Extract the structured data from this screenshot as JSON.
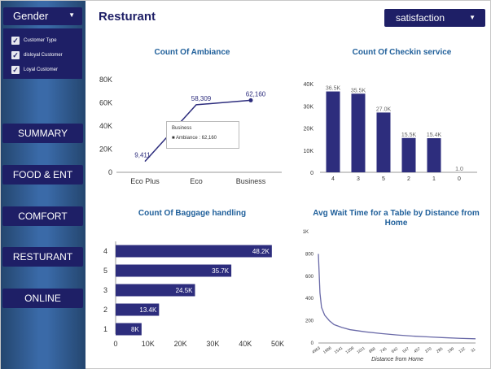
{
  "sidebar": {
    "gender_label": "Gender",
    "filters": [
      "Customer Type",
      "disloyal Customer",
      "Loyal Customer"
    ],
    "nav": [
      "SUMMARY",
      "FOOD & ENT",
      "COMFORT",
      "RESTURANT",
      "ONLINE"
    ]
  },
  "header": {
    "title": "Resturant",
    "satisfaction_label": "satisfaction"
  },
  "colors": {
    "bar": "#2d2d7d",
    "nav": "#1e1f66",
    "title": "#1f5f9a"
  },
  "icons": [
    "chevron-down-icon",
    "checkbox-checked-icon"
  ],
  "charts": {
    "ambiance": {
      "title": "Count Of Ambiance",
      "tooltip_title": "Business",
      "tooltip_text": "Ambiance : 62,160"
    },
    "checkin": {
      "title": "Count Of Checkin service"
    },
    "baggage": {
      "title": "Count Of Baggage handling"
    },
    "wait": {
      "title": "Avg Wait Time for a Table by Distance from Home"
    }
  },
  "chart_data": [
    {
      "type": "line",
      "title": "Count Of Ambiance",
      "categories": [
        "Eco Plus",
        "Eco",
        "Business"
      ],
      "values": [
        9411,
        58309,
        62160
      ],
      "value_labels": [
        "9,411",
        "58,309",
        "62,160"
      ],
      "yticks": [
        "0",
        "20K",
        "40K",
        "60K",
        "80K"
      ],
      "ylim": [
        0,
        80000
      ]
    },
    {
      "type": "bar",
      "title": "Count Of Checkin service",
      "categories": [
        "4",
        "3",
        "5",
        "2",
        "1",
        "0"
      ],
      "values": [
        36500,
        35500,
        27000,
        15500,
        15400,
        1
      ],
      "value_labels": [
        "36.5K",
        "35.5K",
        "27.0K",
        "15.5K",
        "15.4K",
        "1.0"
      ],
      "yticks": [
        "0",
        "10K",
        "20K",
        "30K",
        "40K"
      ],
      "ylim": [
        0,
        40000
      ]
    },
    {
      "type": "bar",
      "orientation": "horizontal",
      "title": "Count Of Baggage handling",
      "categories": [
        "4",
        "5",
        "3",
        "2",
        "1"
      ],
      "values": [
        48200,
        35700,
        24500,
        13400,
        8000
      ],
      "value_labels": [
        "48.2K",
        "35.7K",
        "24.5K",
        "13.4K",
        "8K"
      ],
      "xticks": [
        "0",
        "10K",
        "20K",
        "30K",
        "40K",
        "50K"
      ],
      "xlim": [
        0,
        50000
      ]
    },
    {
      "type": "line",
      "title": "Avg Wait Time for a Table by Distance from Home",
      "xlabel": "Distance from Home",
      "ylabel_unit": "1K",
      "yticks": [
        "0",
        "200",
        "400",
        "600",
        "800"
      ],
      "ylim": [
        0,
        1000
      ],
      "xticks": [
        "4963",
        "1986",
        "1541",
        "1208",
        "1011",
        "868",
        "745",
        "642",
        "547",
        "457",
        "370",
        "285",
        "199",
        "122",
        "31"
      ],
      "points": [
        [
          0,
          800
        ],
        [
          0.01,
          450
        ],
        [
          0.02,
          320
        ],
        [
          0.04,
          250
        ],
        [
          0.07,
          200
        ],
        [
          0.1,
          165
        ],
        [
          0.15,
          140
        ],
        [
          0.2,
          120
        ],
        [
          0.3,
          100
        ],
        [
          0.4,
          85
        ],
        [
          0.5,
          72
        ],
        [
          0.6,
          62
        ],
        [
          0.7,
          55
        ],
        [
          0.8,
          48
        ],
        [
          0.9,
          42
        ],
        [
          1,
          38
        ]
      ]
    }
  ]
}
